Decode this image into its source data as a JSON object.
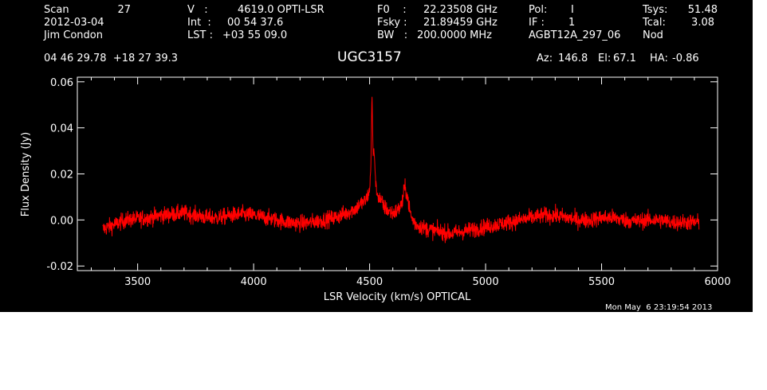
{
  "header": {
    "scan_label": "Scan",
    "scan_number": "27",
    "date": "2012-03-04",
    "observer": "Jim Condon",
    "velocity_label": "V   :",
    "velocity_value": "4619.0 OPTI-LSR",
    "int_label": "Int  :",
    "int_value": "00 54 37.6",
    "lst_label": "LST :",
    "lst_value": "+03 55 09.0",
    "f0_label": "F0    :",
    "f0_value": "22.23508 GHz",
    "fsky_label": "Fsky :",
    "fsky_value": "21.89459 GHz",
    "bw_label": "BW   :",
    "bw_value": "200.0000 MHz",
    "pol_label": "Pol:",
    "pol_value": "I",
    "if_label": "IF :",
    "if_value": "1",
    "project": "AGBT12A_297_06",
    "tsys_label": "Tsys:",
    "tsys_value": "51.48",
    "tcal_label": "Tcal:",
    "tcal_value": "3.08",
    "mode": "Nod",
    "coords": "04 46 29.78  +18 27 39.3",
    "source": "UGC3157",
    "az_label": "Az:",
    "az_value": "146.8",
    "el_label": "El:",
    "el_value": "67.1",
    "ha_label": "HA:",
    "ha_value": "-0.86"
  },
  "footer": {
    "timestamp": "Mon May  6 23:19:54 2013"
  },
  "chart_data": {
    "type": "line",
    "xlabel": "LSR Velocity (km/s) OPTICAL",
    "ylabel": "Flux Density (Jy)",
    "xlim": [
      3240,
      6000
    ],
    "ylim": [
      -0.022,
      0.062
    ],
    "x_ticks": [
      3500,
      4000,
      4500,
      5000,
      5500,
      6000
    ],
    "x_tick_labels": [
      "3500",
      "4000",
      "4500",
      "5000",
      "5500",
      "6000"
    ],
    "y_ticks": [
      -0.02,
      0.0,
      0.02,
      0.04,
      0.06
    ],
    "y_tick_labels": [
      "-0.02",
      "0.00",
      "0.02",
      "0.04",
      "0.06"
    ],
    "grid": false,
    "line_color": "#ff0000",
    "series": [
      {
        "x": [
          3350,
          3400,
          3450,
          3500,
          3550,
          3600,
          3650,
          3700,
          3750,
          3800,
          3850,
          3900,
          3950,
          4000,
          4050,
          4100,
          4150,
          4200,
          4250,
          4300,
          4350,
          4400,
          4420,
          4440,
          4460,
          4480,
          4490,
          4500,
          4505,
          4510,
          4515,
          4520,
          4525,
          4530,
          4540,
          4550,
          4560,
          4580,
          4600,
          4620,
          4640,
          4650,
          4660,
          4670,
          4680,
          4700,
          4750,
          4800,
          4850,
          4900,
          4950,
          5000,
          5050,
          5100,
          5150,
          5200,
          5250,
          5300,
          5350,
          5400,
          5450,
          5500,
          5550,
          5600,
          5650,
          5700,
          5750,
          5800,
          5850,
          5900,
          5920
        ],
        "y": [
          -0.004,
          -0.002,
          0.0,
          0.0005,
          0.001,
          0.002,
          0.0025,
          0.003,
          0.002,
          0.001,
          0.001,
          0.002,
          0.0025,
          0.002,
          0.001,
          0.0,
          -0.001,
          -0.0015,
          -0.001,
          0.0,
          0.001,
          0.003,
          0.004,
          0.005,
          0.007,
          0.008,
          0.01,
          0.013,
          0.022,
          0.055,
          0.028,
          0.03,
          0.018,
          0.012,
          0.01,
          0.008,
          0.006,
          0.004,
          0.003,
          0.004,
          0.007,
          0.014,
          0.012,
          0.006,
          0.001,
          -0.002,
          -0.004,
          -0.005,
          -0.006,
          -0.005,
          -0.004,
          -0.003,
          -0.002,
          -0.001,
          0.0,
          0.001,
          0.002,
          0.002,
          0.001,
          0.0,
          0.0,
          0.001,
          0.001,
          0.0,
          -0.0005,
          0.0,
          0.0,
          -0.001,
          -0.001,
          -0.001,
          -0.001
        ],
        "noise_rms": 0.0018
      }
    ]
  }
}
